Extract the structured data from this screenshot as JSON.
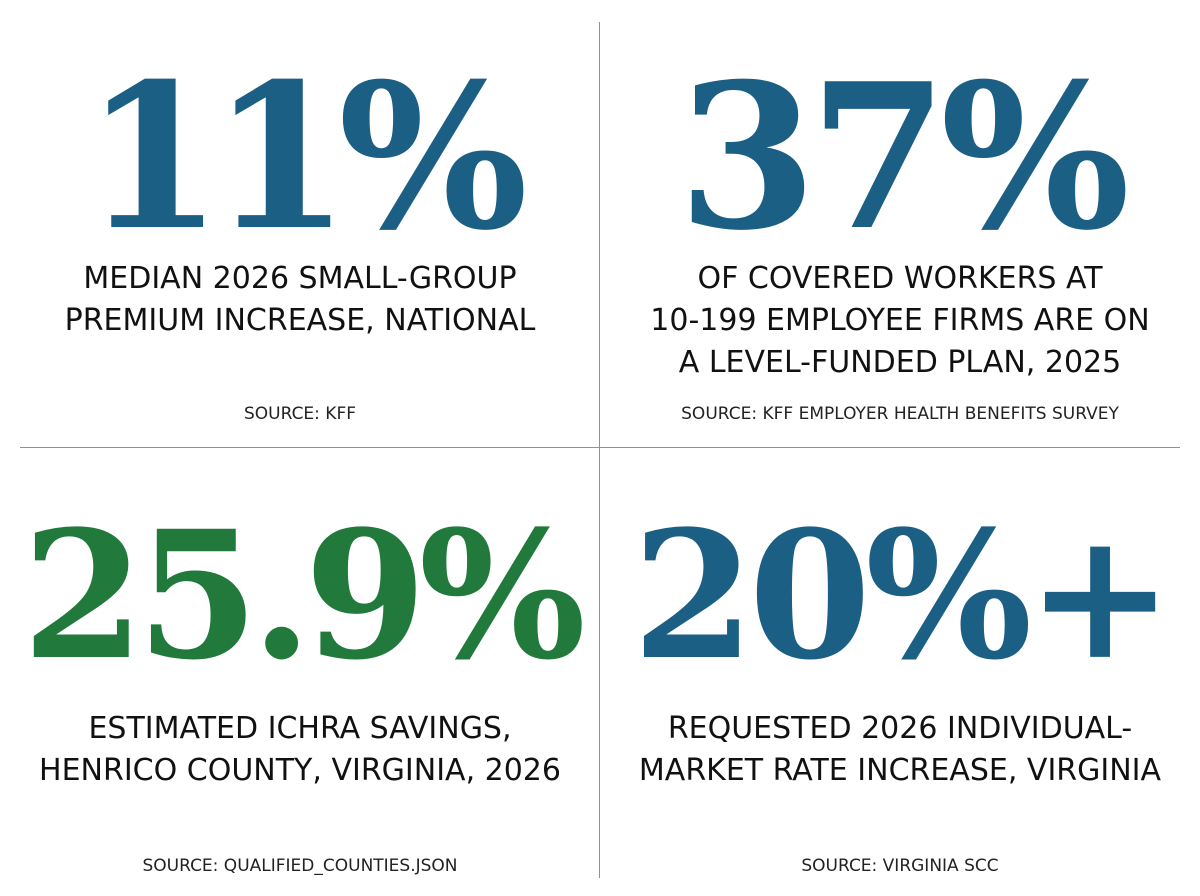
{
  "colors": {
    "blue": "#1c5f85",
    "green": "#217a3c",
    "divider": "#7f9a8e",
    "text": "#111111"
  },
  "stats": [
    {
      "value": "11%",
      "color": "#1c5f85",
      "description": [
        "MEDIAN 2026 SMALL-GROUP",
        "PREMIUM INCREASE, NATIONAL"
      ],
      "source": "SOURCE: KFF"
    },
    {
      "value": "37%",
      "color": "#1c5f85",
      "description": [
        "OF COVERED WORKERS AT",
        "10-199 EMPLOYEE FIRMS ARE ON",
        "A LEVEL-FUNDED PLAN, 2025"
      ],
      "source": "SOURCE: KFF EMPLOYER HEALTH BENEFITS SURVEY"
    },
    {
      "value": "25.9%",
      "color": "#217a3c",
      "description": [
        "ESTIMATED ICHRA SAVINGS,",
        "HENRICO COUNTY, VIRGINIA, 2026"
      ],
      "source": "SOURCE: QUALIFIED_COUNTIES.JSON"
    },
    {
      "value": "20%+",
      "color": "#1c5f85",
      "description": [
        "REQUESTED 2026 INDIVIDUAL-",
        "MARKET RATE INCREASE, VIRGINIA"
      ],
      "source": "SOURCE: VIRGINIA SCC"
    }
  ]
}
